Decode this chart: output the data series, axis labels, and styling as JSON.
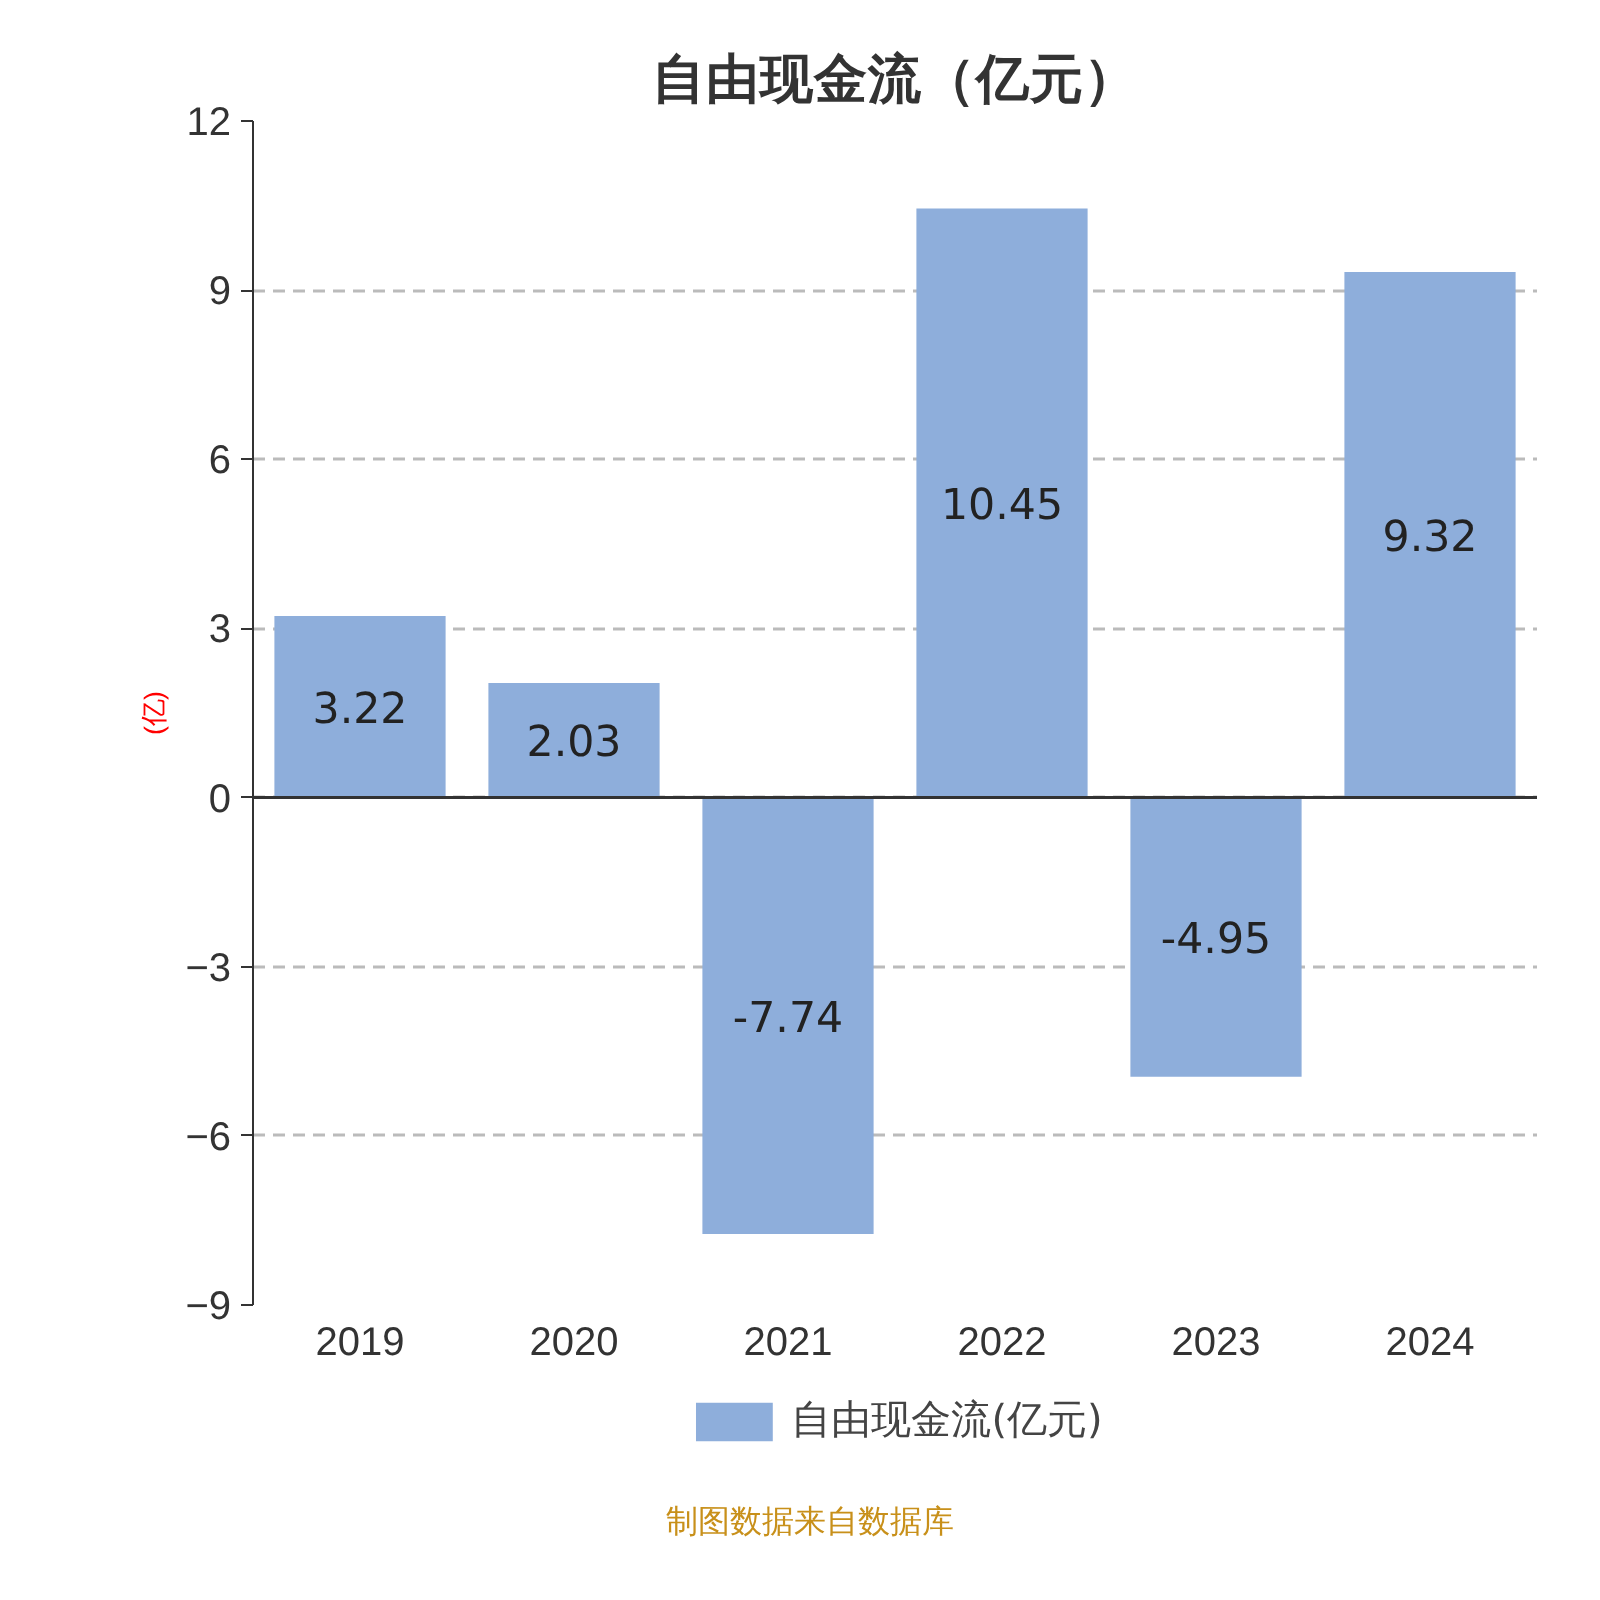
{
  "chart_data": {
    "type": "bar",
    "title": "自由现金流（亿元）",
    "ylabel": "(亿)",
    "categories": [
      "2019",
      "2020",
      "2021",
      "2022",
      "2023",
      "2024"
    ],
    "series": [
      {
        "name": "自由现金流(亿元)",
        "color": "#8eaedb",
        "values": [
          3.22,
          2.03,
          -7.74,
          10.45,
          -4.95,
          9.32
        ]
      }
    ],
    "ylim": [
      -9,
      12
    ],
    "yticks": [
      -9,
      -6,
      -3,
      0,
      3,
      6,
      9,
      12
    ],
    "grid": "y",
    "legend": "bottom",
    "data_labels": true,
    "annotations": [
      "制图数据来自数据库"
    ]
  }
}
